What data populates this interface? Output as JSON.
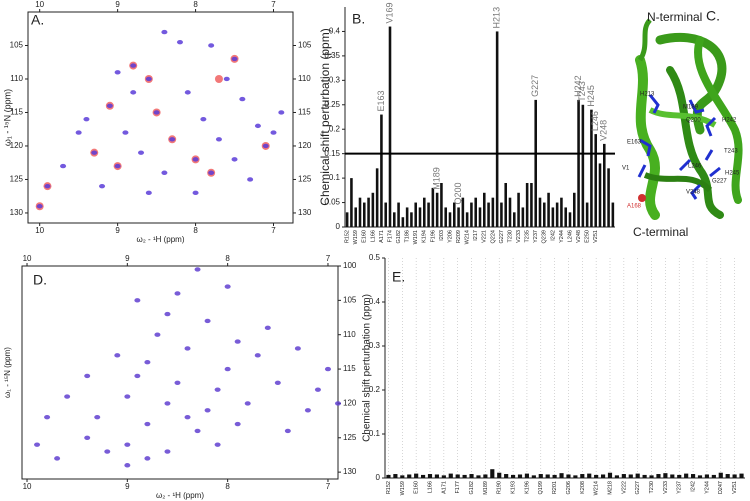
{
  "chart_data": [
    {
      "type": "scatter",
      "panel": "A.",
      "xlabel": "ω₂ - ¹H (ppm)",
      "ylabel": "ω₁ - ¹⁵N (ppm)",
      "xlim": [
        10.15,
        6.75
      ],
      "ylim": [
        131.5,
        100
      ],
      "xticks": [
        10,
        9,
        8,
        7
      ],
      "yticks": [
        105,
        110,
        115,
        120,
        125,
        130
      ],
      "series": [
        {
          "color": "#f06060",
          "x": [
            10.0,
            9.9,
            8.8,
            7.5,
            9.0,
            8.3,
            7.8,
            8.5,
            9.1,
            7.1,
            8.0,
            9.3,
            8.6,
            7.7
          ],
          "values": [
            129,
            126,
            108,
            107,
            123,
            119,
            124,
            115,
            114,
            120,
            122,
            121,
            110,
            110
          ]
        },
        {
          "color": "#5a3cd8",
          "x": [
            8.4,
            8.2,
            7.8,
            7.5,
            8.8,
            9.0,
            8.6,
            7.6,
            8.1,
            7.4,
            9.1,
            8.5,
            7.9,
            7.2,
            9.5,
            8.9,
            8.3,
            7.7,
            7.1,
            9.3,
            8.7,
            8.0,
            7.5,
            9.7,
            9.0,
            8.4,
            7.8,
            7.3,
            9.9,
            9.2,
            8.6,
            8.0,
            10.0,
            7.0,
            6.9,
            8.8,
            9.4
          ],
          "values": [
            103,
            104.5,
            105,
            107,
            108,
            109,
            110,
            110,
            112,
            113,
            114,
            115,
            116,
            117,
            118,
            118,
            119,
            119,
            120,
            121,
            121,
            122,
            122,
            123,
            123,
            124,
            124,
            125,
            126,
            126,
            127,
            127,
            129,
            118,
            115,
            112,
            116
          ]
        }
      ]
    },
    {
      "type": "bar",
      "panel": "B.",
      "ylabel": "Chemical shift perturbation (ppm)",
      "color": "#111111",
      "ylim": [
        0,
        0.45
      ],
      "yticks": [
        0,
        0.05,
        0.1,
        0.15,
        0.2,
        0.25,
        0.3,
        0.35,
        0.4
      ],
      "threshold": 0.15,
      "categories": [
        "R152",
        null,
        "W159",
        null,
        "E160",
        null,
        "L166",
        null,
        "A171",
        null,
        "F174",
        null,
        "G182",
        null,
        "T186",
        null,
        "W191",
        null,
        "K194",
        null,
        "F196",
        null,
        "I203",
        null,
        "Y206",
        null,
        "R209",
        null,
        "W214",
        null,
        "I217",
        null,
        "V221",
        null,
        "Q224",
        null,
        "G227",
        null,
        "T230",
        null,
        "V233",
        null,
        "T235",
        null,
        "Y237",
        null,
        "Q239",
        null,
        "I242",
        null,
        "Y244",
        null,
        "L246",
        null,
        "V248",
        null,
        "E250",
        null,
        "V251",
        null,
        null,
        null,
        null
      ],
      "values": [
        0.03,
        0.1,
        0.04,
        0.06,
        0.05,
        0.06,
        0.07,
        0.12,
        0.23,
        0.05,
        0.41,
        0.03,
        0.05,
        0.02,
        0.04,
        0.03,
        0.05,
        0.04,
        0.06,
        0.05,
        0.08,
        0.07,
        0.09,
        0.04,
        0.03,
        0.05,
        0.04,
        0.06,
        0.03,
        0.05,
        0.06,
        0.04,
        0.07,
        0.05,
        0.06,
        0.4,
        0.05,
        0.09,
        0.06,
        0.03,
        0.07,
        0.04,
        0.09,
        0.09,
        0.26,
        0.06,
        0.05,
        0.07,
        0.04,
        0.05,
        0.06,
        0.04,
        0.03,
        0.07,
        0.26,
        0.25,
        0.05,
        0.24,
        0.19,
        0.13,
        0.17,
        0.12,
        0.05
      ],
      "bar_names": [
        null,
        null,
        null,
        null,
        null,
        null,
        null,
        null,
        "E163",
        null,
        "V169",
        null,
        null,
        null,
        null,
        null,
        null,
        null,
        null,
        null,
        null,
        "M189",
        null,
        null,
        null,
        null,
        "Q200",
        null,
        null,
        null,
        null,
        null,
        null,
        null,
        null,
        "H213",
        null,
        null,
        null,
        null,
        null,
        null,
        null,
        null,
        "G227",
        null,
        null,
        null,
        null,
        null,
        null,
        null,
        null,
        null,
        "H242",
        "T243",
        null,
        "H245",
        "L246",
        null,
        "V248",
        null,
        null
      ]
    },
    {
      "type": "scatter",
      "panel": "D.",
      "xlabel": "ω₂ - ¹H (ppm)",
      "ylabel": "ω₁ - ¹⁵N (ppm)",
      "xlim": [
        10.05,
        6.9
      ],
      "ylim": [
        131,
        100
      ],
      "xticks": [
        10,
        9,
        8,
        7
      ],
      "yticks": [
        100,
        105,
        110,
        115,
        120,
        125,
        130
      ],
      "series": [
        {
          "color": "#6040d0",
          "x": [
            8.3,
            8.0,
            8.5,
            8.9,
            8.6,
            8.2,
            7.6,
            8.7,
            7.9,
            8.4,
            9.1,
            8.8,
            7.7,
            7.3,
            9.4,
            8.9,
            8.5,
            8.1,
            7.5,
            7.0,
            9.6,
            9.0,
            8.6,
            8.2,
            7.8,
            7.2,
            9.8,
            9.3,
            8.8,
            8.3,
            7.9,
            7.4,
            9.9,
            9.4,
            9.0,
            8.6,
            8.1,
            9.7,
            9.2,
            8.8,
            9.0,
            7.1,
            6.9,
            8.0,
            8.4
          ],
          "values": [
            100.5,
            103,
            104,
            105,
            107,
            108,
            109,
            110,
            111,
            112,
            113,
            114,
            113,
            112,
            116,
            116,
            117,
            118,
            117,
            115,
            119,
            119,
            120,
            121,
            120,
            121,
            122,
            122,
            123,
            124,
            123,
            124,
            126,
            125,
            126,
            127,
            126,
            128,
            127,
            128,
            129,
            118,
            120,
            115,
            122
          ]
        }
      ]
    },
    {
      "type": "bar",
      "panel": "E.",
      "ylabel": "Chemical shift perturbation (ppm)",
      "color": "#111111",
      "ylim": [
        0,
        0.5
      ],
      "yticks": [
        0,
        0.1,
        0.2,
        0.3,
        0.4,
        0.5
      ],
      "grid": true,
      "categories": [
        "R152",
        null,
        "W159",
        null,
        "E160",
        null,
        "L166",
        null,
        "A171",
        null,
        "F177",
        null,
        "G182",
        null,
        "M189",
        null,
        "R190",
        null,
        "K193",
        null,
        "K196",
        null,
        "Q199",
        null,
        "R201",
        null,
        "G206",
        null,
        "K208",
        null,
        "W214",
        null,
        "M218",
        null,
        "V222",
        null,
        "G227",
        null,
        "T230",
        null,
        "V233",
        null,
        "Y237",
        null,
        "I242",
        null,
        "Y244",
        null,
        "D247",
        null,
        "V251",
        null
      ],
      "values": [
        0.007,
        0.009,
        0.006,
        0.008,
        0.01,
        0.007,
        0.009,
        0.008,
        0.006,
        0.01,
        0.008,
        0.007,
        0.009,
        0.006,
        0.008,
        0.02,
        0.012,
        0.009,
        0.007,
        0.008,
        0.01,
        0.006,
        0.009,
        0.008,
        0.007,
        0.011,
        0.008,
        0.006,
        0.009,
        0.01,
        0.007,
        0.008,
        0.012,
        0.006,
        0.009,
        0.008,
        0.01,
        0.007,
        0.006,
        0.009,
        0.011,
        0.008,
        0.007,
        0.01,
        0.009,
        0.006,
        0.008,
        0.007,
        0.012,
        0.009,
        0.008,
        0.01
      ]
    }
  ],
  "structure": {
    "panel": "C.",
    "n_terminal": "N-terminal",
    "c_terminal": "C-terminal",
    "residues": [
      "H213",
      "M189",
      "Q200",
      "E163",
      "H242",
      "T243",
      "L246",
      "H245",
      "G227",
      "V248",
      "V1",
      "A168"
    ]
  }
}
